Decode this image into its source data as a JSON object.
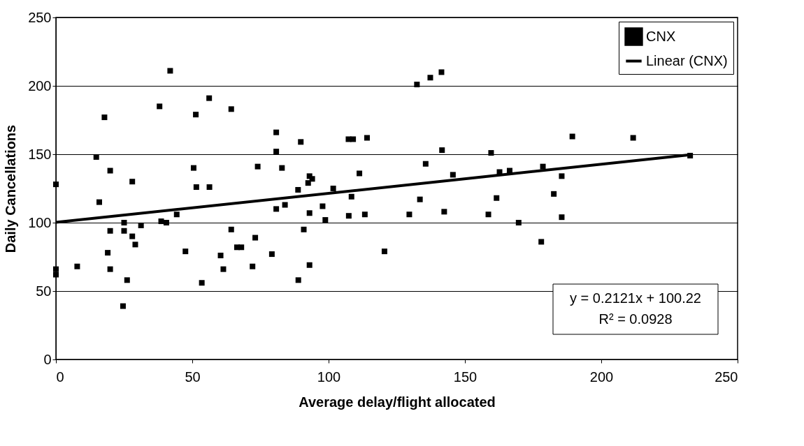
{
  "chart_data": {
    "type": "scatter",
    "xlabel": "Average delay/flight allocated",
    "ylabel": "Daily Cancellations",
    "xlim": [
      0,
      250
    ],
    "xticks": [
      0,
      50,
      100,
      150,
      200,
      250
    ],
    "ylim": [
      0,
      250
    ],
    "yticks": [
      0,
      50,
      100,
      150,
      200,
      250
    ],
    "grid": "y",
    "legend": "top right",
    "annotations": [
      "y = 0.2121x + 100.22",
      "R² = 0.0928"
    ],
    "series": [
      {
        "name": "CNX",
        "color": "#000000",
        "marker": "square",
        "x": [
          0,
          0,
          0,
          7.8,
          14.8,
          15.9,
          17.8,
          19.0,
          19.9,
          19.9,
          19.9,
          24.6,
          25.0,
          25.0,
          26.1,
          28.0,
          28.0,
          29.1,
          31.2,
          38.0,
          38.6,
          40.5,
          41.9,
          44.3,
          47.5,
          50.5,
          51.3,
          51.5,
          56.2,
          56.3,
          60.4,
          61.4,
          53.5,
          64.3,
          64.3,
          66.4,
          68.0,
          72.1,
          73.1,
          74.0,
          79.2,
          80.8,
          80.8,
          80.8,
          82.9,
          84.0,
          88.8,
          88.9,
          89.8,
          90.9,
          92.5,
          93.0,
          94.0,
          93.0,
          93.0,
          97.8,
          98.8,
          101.7,
          107.3,
          107.4,
          108.4,
          109.0,
          111.3,
          113.3,
          114.1,
          120.5,
          129.6,
          132.4,
          133.5,
          135.6,
          137.3,
          141.4,
          141.6,
          142.4,
          145.6,
          158.6,
          159.6,
          161.6,
          162.7,
          166.4,
          169.7,
          178.0,
          178.6,
          182.6,
          185.5,
          185.5,
          189.4,
          211.7,
          232.6
        ],
        "values": [
          128,
          66,
          62,
          68,
          148,
          115,
          177,
          78,
          138,
          94,
          66,
          39,
          100,
          94,
          58,
          130,
          90,
          84,
          98,
          185,
          101,
          100,
          211,
          106,
          79,
          140,
          179,
          126,
          191,
          126,
          76,
          66,
          56,
          183,
          95,
          82,
          82,
          68,
          89,
          141,
          77,
          166,
          152,
          110,
          140,
          113,
          124,
          58,
          159,
          95,
          129,
          134,
          132,
          107,
          69,
          112,
          102,
          125,
          161,
          105,
          119,
          161,
          136,
          106,
          162,
          79,
          106,
          201,
          117,
          143,
          206,
          210,
          153,
          108,
          135,
          106,
          151,
          118,
          137,
          138,
          100,
          86,
          141,
          121,
          134,
          104,
          163,
          162,
          149
        ]
      },
      {
        "name": "Linear (CNX)",
        "type": "line",
        "marker": "none",
        "color": "#000000",
        "x": [
          0,
          232.6
        ],
        "values": [
          100.2,
          149.6
        ]
      }
    ]
  }
}
